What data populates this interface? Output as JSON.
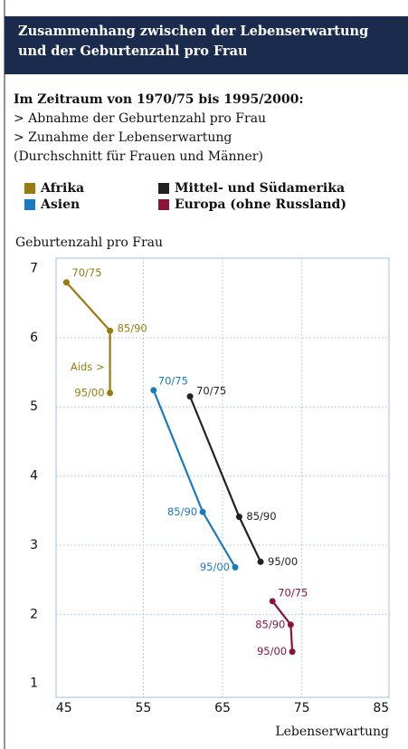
{
  "chart_data": {
    "type": "line",
    "title": "Zusammenhang zwischen der Lebenserwartung und der Geburtenzahl pro Frau",
    "subtitle": "Im Zeitraum von 1970/75 bis 1995/2000:",
    "notes": [
      "> Abnahme der Geburtenzahl pro Frau",
      "> Zunahme der Lebenserwartung",
      "(Durchschnitt für Frauen und Männer)"
    ],
    "y_label": "Geburtenzahl pro Frau",
    "x_label": "Lebenserwartung",
    "xlim": [
      44,
      86
    ],
    "xticks": [
      45,
      55,
      65,
      75,
      85
    ],
    "ylim": [
      0.8,
      7.15
    ],
    "yticks": [
      1,
      2,
      3,
      4,
      5,
      6,
      7
    ],
    "grid": true,
    "annotation": "Aids >",
    "series": [
      {
        "name": "Afrika",
        "color": "#9a7b0f",
        "x": [
          45.3,
          50.8,
          50.8
        ],
        "values": [
          6.8,
          6.1,
          5.2
        ],
        "labels": [
          "70/75",
          "85/90",
          "95/00"
        ]
      },
      {
        "name": "Asien",
        "color": "#1a7abf",
        "x": [
          56.3,
          62.5,
          66.6
        ],
        "values": [
          5.24,
          3.48,
          2.68
        ],
        "labels": [
          "70/75",
          "85/90",
          "95/00"
        ]
      },
      {
        "name": "Mittel- und Südamerika",
        "color": "#222222",
        "x": [
          60.9,
          67.1,
          69.8
        ],
        "values": [
          5.15,
          3.41,
          2.76
        ],
        "labels": [
          "70/75",
          "85/90",
          "95/00"
        ]
      },
      {
        "name": "Europa (ohne Russland)",
        "color": "#8a1538",
        "x": [
          71.3,
          73.6,
          73.8
        ],
        "values": [
          2.19,
          1.85,
          1.46
        ],
        "labels": [
          "70/75",
          "85/90",
          "95/00"
        ]
      }
    ]
  }
}
